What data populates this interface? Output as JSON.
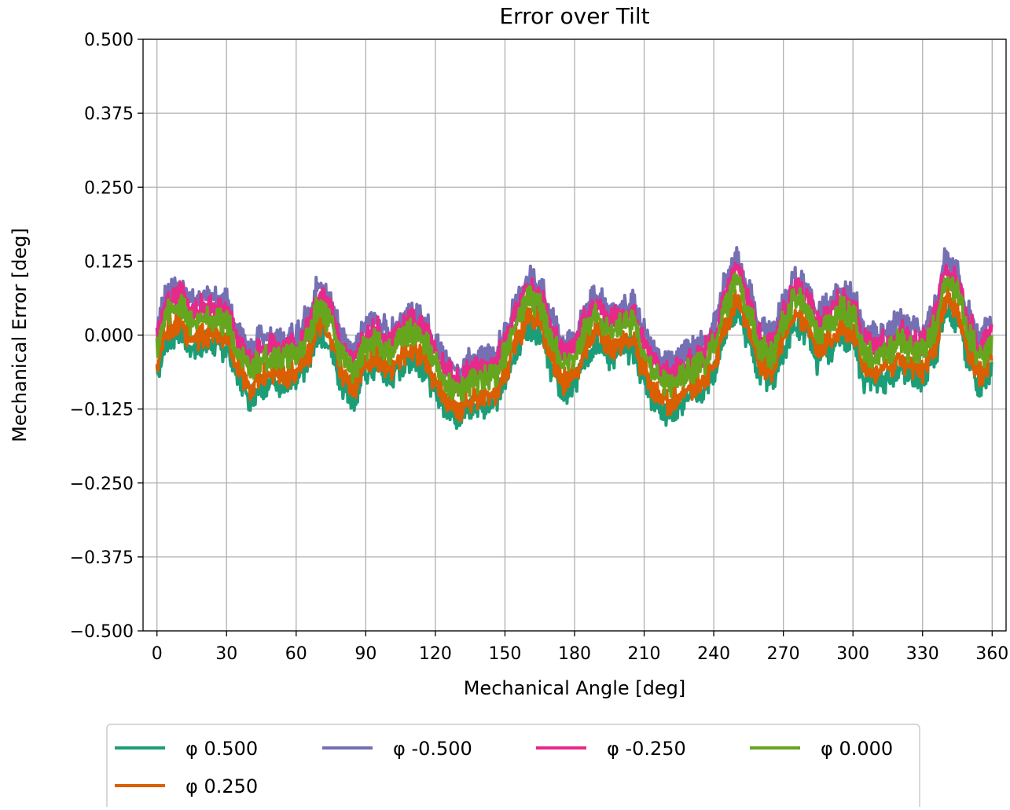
{
  "chart_data": {
    "type": "line",
    "title": "Error over Tilt",
    "xlabel": "Mechanical Angle [deg]",
    "ylabel": "Mechanical Error [deg]",
    "xlim": [
      -6,
      366
    ],
    "ylim": [
      -0.5,
      0.5
    ],
    "xticks": [
      0,
      30,
      60,
      90,
      120,
      150,
      180,
      210,
      240,
      270,
      300,
      330,
      360
    ],
    "xtick_labels": [
      "0",
      "30",
      "60",
      "90",
      "120",
      "150",
      "180",
      "210",
      "240",
      "270",
      "300",
      "330",
      "360"
    ],
    "yticks": [
      0.5,
      0.375,
      0.25,
      0.125,
      0.0,
      -0.125,
      -0.25,
      -0.375,
      -0.5
    ],
    "ytick_labels": [
      "0.500",
      "0.375",
      "0.250",
      "0.125",
      "0.000",
      "−0.125",
      "−0.250",
      "−0.375",
      "−0.500"
    ],
    "grid": true,
    "legend_position": "bottom-left, below plot",
    "x": [
      0,
      5,
      10,
      15,
      20,
      25,
      30,
      35,
      40,
      45,
      50,
      55,
      60,
      65,
      70,
      75,
      80,
      85,
      90,
      95,
      100,
      105,
      110,
      115,
      120,
      125,
      130,
      135,
      140,
      145,
      150,
      155,
      160,
      165,
      170,
      175,
      180,
      185,
      190,
      195,
      200,
      205,
      210,
      215,
      220,
      225,
      230,
      235,
      240,
      245,
      250,
      255,
      260,
      265,
      270,
      275,
      280,
      285,
      290,
      295,
      300,
      305,
      310,
      315,
      320,
      325,
      330,
      335,
      340,
      345,
      350,
      355,
      360
    ],
    "series": [
      {
        "name": "φ 0.500",
        "color": "#1b9e77",
        "offset": -0.045,
        "values": [
          -0.015,
          0.04,
          0.05,
          0.02,
          0.03,
          0.03,
          0.02,
          -0.03,
          -0.06,
          -0.04,
          -0.035,
          -0.04,
          -0.035,
          -0.005,
          0.05,
          0.02,
          -0.04,
          -0.06,
          -0.02,
          -0.01,
          -0.03,
          -0.01,
          0.005,
          -0.01,
          -0.05,
          -0.08,
          -0.095,
          -0.08,
          -0.075,
          -0.07,
          -0.035,
          0.02,
          0.06,
          0.05,
          -0.01,
          -0.05,
          -0.04,
          0.01,
          0.035,
          0.005,
          0.015,
          0.02,
          -0.03,
          -0.07,
          -0.085,
          -0.075,
          -0.06,
          -0.05,
          -0.02,
          0.05,
          0.09,
          0.04,
          -0.02,
          -0.035,
          0.02,
          0.06,
          0.05,
          0.0,
          0.02,
          0.045,
          0.03,
          -0.03,
          -0.035,
          -0.03,
          -0.01,
          -0.025,
          -0.03,
          0.01,
          0.09,
          0.07,
          0.0,
          -0.04,
          -0.01
        ]
      },
      {
        "name": "φ -0.500",
        "color": "#7570b3",
        "offset": 0.035,
        "values": [
          -0.015,
          0.04,
          0.05,
          0.02,
          0.03,
          0.03,
          0.02,
          -0.03,
          -0.06,
          -0.04,
          -0.035,
          -0.04,
          -0.035,
          -0.005,
          0.05,
          0.02,
          -0.04,
          -0.06,
          -0.02,
          -0.01,
          -0.03,
          -0.01,
          0.005,
          -0.01,
          -0.05,
          -0.08,
          -0.095,
          -0.08,
          -0.075,
          -0.07,
          -0.035,
          0.02,
          0.06,
          0.05,
          -0.01,
          -0.05,
          -0.04,
          0.01,
          0.035,
          0.005,
          0.015,
          0.02,
          -0.03,
          -0.07,
          -0.085,
          -0.075,
          -0.06,
          -0.05,
          -0.02,
          0.05,
          0.09,
          0.04,
          -0.02,
          -0.035,
          0.02,
          0.06,
          0.05,
          0.0,
          0.02,
          0.045,
          0.03,
          -0.03,
          -0.035,
          -0.03,
          -0.01,
          -0.025,
          -0.03,
          0.01,
          0.09,
          0.07,
          0.0,
          -0.04,
          -0.01
        ]
      },
      {
        "name": "φ -0.250",
        "color": "#e7298a",
        "offset": 0.018,
        "values": [
          -0.015,
          0.04,
          0.05,
          0.02,
          0.03,
          0.03,
          0.02,
          -0.03,
          -0.06,
          -0.04,
          -0.035,
          -0.04,
          -0.035,
          -0.005,
          0.05,
          0.02,
          -0.04,
          -0.06,
          -0.02,
          -0.01,
          -0.03,
          -0.01,
          0.005,
          -0.01,
          -0.05,
          -0.08,
          -0.095,
          -0.08,
          -0.075,
          -0.07,
          -0.035,
          0.02,
          0.06,
          0.05,
          -0.01,
          -0.05,
          -0.04,
          0.01,
          0.035,
          0.005,
          0.015,
          0.02,
          -0.03,
          -0.07,
          -0.085,
          -0.075,
          -0.06,
          -0.05,
          -0.02,
          0.05,
          0.09,
          0.04,
          -0.02,
          -0.035,
          0.02,
          0.06,
          0.05,
          0.0,
          0.02,
          0.045,
          0.03,
          -0.03,
          -0.035,
          -0.03,
          -0.01,
          -0.025,
          -0.03,
          0.01,
          0.09,
          0.07,
          0.0,
          -0.04,
          -0.01
        ]
      },
      {
        "name": "φ 0.250",
        "color": "#d95f02",
        "offset": -0.028,
        "values": [
          -0.015,
          0.04,
          0.05,
          0.02,
          0.03,
          0.03,
          0.02,
          -0.03,
          -0.06,
          -0.04,
          -0.035,
          -0.04,
          -0.035,
          -0.005,
          0.05,
          0.02,
          -0.04,
          -0.06,
          -0.02,
          -0.01,
          -0.03,
          -0.01,
          0.005,
          -0.01,
          -0.05,
          -0.08,
          -0.095,
          -0.08,
          -0.075,
          -0.07,
          -0.035,
          0.02,
          0.06,
          0.05,
          -0.01,
          -0.05,
          -0.04,
          0.01,
          0.035,
          0.005,
          0.015,
          0.02,
          -0.03,
          -0.07,
          -0.085,
          -0.075,
          -0.06,
          -0.05,
          -0.02,
          0.05,
          0.09,
          0.04,
          -0.02,
          -0.035,
          0.02,
          0.06,
          0.05,
          0.0,
          0.02,
          0.045,
          0.03,
          -0.03,
          -0.035,
          -0.03,
          -0.01,
          -0.025,
          -0.03,
          0.01,
          0.09,
          0.07,
          0.0,
          -0.04,
          -0.01
        ]
      },
      {
        "name": "φ 0.000",
        "color": "#66a61e",
        "offset": 0.0,
        "values": [
          -0.015,
          0.04,
          0.05,
          0.02,
          0.03,
          0.03,
          0.02,
          -0.03,
          -0.06,
          -0.04,
          -0.035,
          -0.04,
          -0.035,
          -0.005,
          0.05,
          0.02,
          -0.04,
          -0.06,
          -0.02,
          -0.01,
          -0.03,
          -0.01,
          0.005,
          -0.01,
          -0.05,
          -0.08,
          -0.095,
          -0.08,
          -0.075,
          -0.07,
          -0.035,
          0.02,
          0.06,
          0.05,
          -0.01,
          -0.05,
          -0.04,
          0.01,
          0.035,
          0.005,
          0.015,
          0.02,
          -0.03,
          -0.07,
          -0.085,
          -0.075,
          -0.06,
          -0.05,
          -0.02,
          0.05,
          0.09,
          0.04,
          -0.02,
          -0.035,
          0.02,
          0.06,
          0.05,
          0.0,
          0.02,
          0.045,
          0.03,
          -0.03,
          -0.035,
          -0.03,
          -0.01,
          -0.025,
          -0.03,
          0.01,
          0.09,
          0.07,
          0.0,
          -0.04,
          -0.01
        ]
      }
    ],
    "legend": [
      {
        "label": "φ 0.500",
        "color": "#1b9e77"
      },
      {
        "label": "φ -0.500",
        "color": "#7570b3"
      },
      {
        "label": "φ -0.250",
        "color": "#e7298a"
      },
      {
        "label": "φ 0.000",
        "color": "#66a61e"
      },
      {
        "label": "φ 0.250",
        "color": "#d95f02"
      }
    ]
  }
}
